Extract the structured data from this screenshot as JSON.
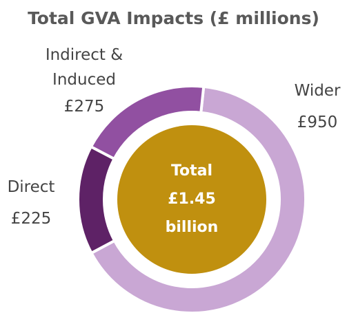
{
  "chart_data": {
    "type": "donut",
    "title": "Total GVA Impacts (£ millions)",
    "categories": [
      "Wider",
      "Direct",
      "Indirect & Induced"
    ],
    "values": [
      950,
      225,
      275
    ],
    "value_labels": [
      "£950",
      "£225",
      "£275"
    ],
    "colors": [
      "#c9a7d4",
      "#5e2266",
      "#9150a1"
    ],
    "center_text": "Total £1.45 billion",
    "center_color": "#c0900f"
  }
}
